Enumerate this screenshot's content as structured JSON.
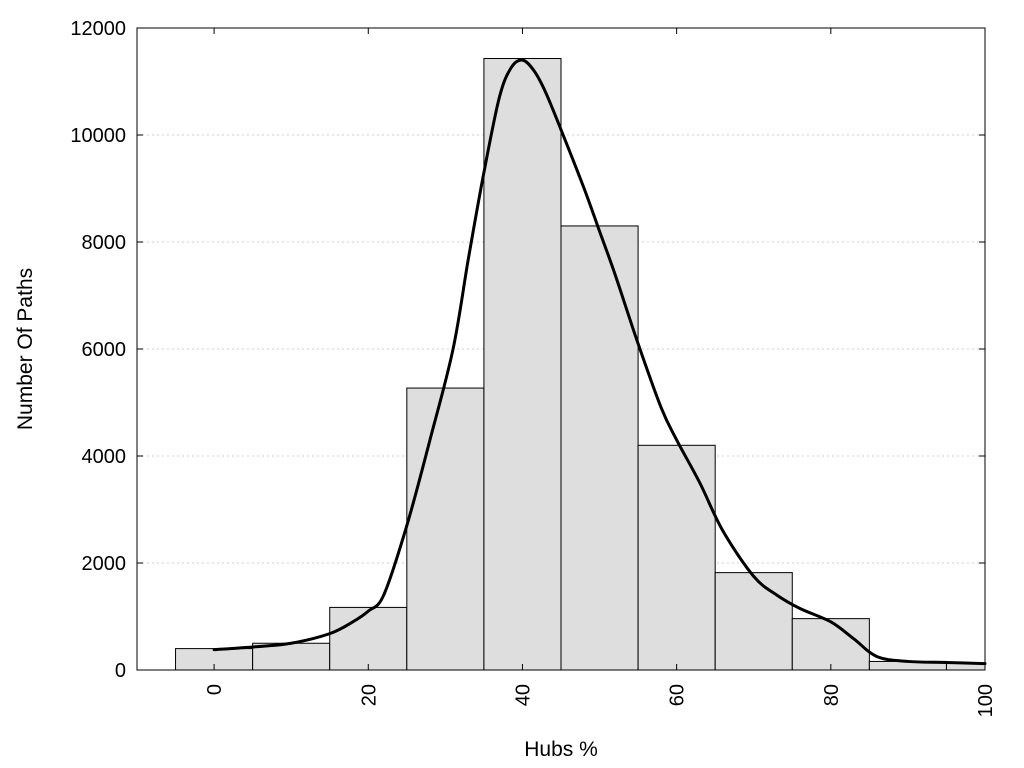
{
  "chart_data": {
    "type": "bar",
    "xlabel": "Hubs %",
    "ylabel": "Number Of Paths",
    "xlim": [
      -10,
      100
    ],
    "ylim": [
      0,
      12000
    ],
    "x_ticks": [
      0,
      20,
      40,
      60,
      80,
      100
    ],
    "y_ticks": [
      0,
      2000,
      4000,
      6000,
      8000,
      10000,
      12000
    ],
    "grid": "horizontal dotted",
    "bin_width": 10,
    "bins": [
      {
        "center": 0,
        "value": 400
      },
      {
        "center": 10,
        "value": 500
      },
      {
        "center": 20,
        "value": 1170
      },
      {
        "center": 30,
        "value": 5270
      },
      {
        "center": 40,
        "value": 11430
      },
      {
        "center": 50,
        "value": 8300
      },
      {
        "center": 60,
        "value": 4200
      },
      {
        "center": 70,
        "value": 1820
      },
      {
        "center": 80,
        "value": 960
      },
      {
        "center": 90,
        "value": 160
      },
      {
        "center": 100,
        "value": 130
      }
    ],
    "density_curve": {
      "x": [
        0,
        5,
        10,
        15,
        18,
        20,
        22,
        25,
        28,
        31,
        33,
        35,
        37,
        38.5,
        40,
        41.5,
        43,
        45,
        48,
        50,
        52,
        55,
        58,
        60,
        63,
        66,
        70,
        73,
        76,
        80,
        83,
        86,
        90,
        95,
        100
      ],
      "y": [
        380,
        430,
        500,
        680,
        900,
        1100,
        1400,
        2700,
        4300,
        6000,
        7700,
        9300,
        10700,
        11250,
        11400,
        11200,
        10800,
        10100,
        9000,
        8200,
        7400,
        6100,
        4900,
        4300,
        3500,
        2600,
        1750,
        1400,
        1150,
        900,
        580,
        250,
        160,
        140,
        120
      ]
    },
    "colors": {
      "bar_fill": "#dedede",
      "bar_stroke": "#000000",
      "curve": "#000000"
    }
  }
}
